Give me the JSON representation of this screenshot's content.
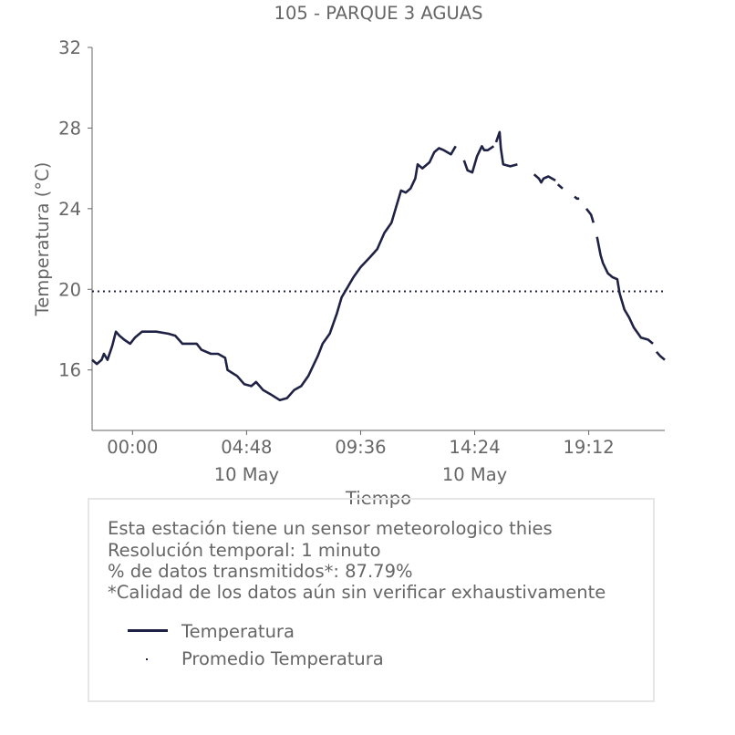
{
  "chart_data": {
    "type": "line",
    "title": "105 - PARQUE 3 AGUAS",
    "xlabel": "Tiempo",
    "ylabel": "Temperatura (°C)",
    "ylim": [
      13,
      32
    ],
    "y_ticks": [
      16,
      20,
      24,
      28,
      32
    ],
    "x_range_hours": [
      -1.7,
      22.4
    ],
    "x_ticks": [
      {
        "hour": 0.0,
        "label": "00:00",
        "sublabel": ""
      },
      {
        "hour": 4.8,
        "label": "04:48",
        "sublabel": "10 May"
      },
      {
        "hour": 9.6,
        "label": "09:36",
        "sublabel": ""
      },
      {
        "hour": 14.4,
        "label": "14:24",
        "sublabel": "10 May"
      },
      {
        "hour": 19.2,
        "label": "19:12",
        "sublabel": ""
      }
    ],
    "grid": false,
    "series": [
      {
        "name": "Temperatura",
        "color": "#1f2244",
        "segments": [
          [
            [
              -1.7,
              16.5
            ],
            [
              -1.5,
              16.3
            ],
            [
              -1.3,
              16.5
            ],
            [
              -1.2,
              16.8
            ],
            [
              -1.05,
              16.5
            ],
            [
              -0.85,
              17.2
            ],
            [
              -0.7,
              17.9
            ],
            [
              -0.55,
              17.7
            ],
            [
              -0.35,
              17.5
            ],
            [
              -0.1,
              17.3
            ],
            [
              0.1,
              17.6
            ],
            [
              0.4,
              17.9
            ],
            [
              1.0,
              17.9
            ],
            [
              1.5,
              17.8
            ],
            [
              1.8,
              17.7
            ],
            [
              2.1,
              17.3
            ],
            [
              2.3,
              17.3
            ],
            [
              2.7,
              17.3
            ],
            [
              2.9,
              17.0
            ],
            [
              3.3,
              16.8
            ],
            [
              3.6,
              16.8
            ],
            [
              3.9,
              16.6
            ],
            [
              4.0,
              16.0
            ],
            [
              4.4,
              15.7
            ],
            [
              4.7,
              15.3
            ],
            [
              5.0,
              15.2
            ],
            [
              5.2,
              15.4
            ],
            [
              5.5,
              15.0
            ],
            [
              5.8,
              14.8
            ],
            [
              6.2,
              14.5
            ],
            [
              6.5,
              14.6
            ],
            [
              6.8,
              15.0
            ],
            [
              7.1,
              15.2
            ],
            [
              7.4,
              15.7
            ],
            [
              7.6,
              16.2
            ],
            [
              7.8,
              16.7
            ],
            [
              8.0,
              17.3
            ],
            [
              8.3,
              17.8
            ],
            [
              8.6,
              18.8
            ],
            [
              8.8,
              19.6
            ],
            [
              9.0,
              20.0
            ],
            [
              9.3,
              20.6
            ],
            [
              9.6,
              21.1
            ],
            [
              10.0,
              21.6
            ],
            [
              10.3,
              22.0
            ],
            [
              10.6,
              22.8
            ],
            [
              10.9,
              23.3
            ],
            [
              11.1,
              24.1
            ],
            [
              11.3,
              24.9
            ],
            [
              11.5,
              24.8
            ],
            [
              11.7,
              25.0
            ],
            [
              11.9,
              25.5
            ],
            [
              12.0,
              26.2
            ],
            [
              12.2,
              26.0
            ],
            [
              12.5,
              26.3
            ],
            [
              12.7,
              26.8
            ],
            [
              12.9,
              27.0
            ],
            [
              13.1,
              26.9
            ],
            [
              13.4,
              26.7
            ],
            [
              13.6,
              27.1
            ]
          ],
          [
            [
              13.95,
              26.4
            ],
            [
              14.1,
              25.9
            ],
            [
              14.3,
              25.8
            ],
            [
              14.5,
              26.6
            ],
            [
              14.7,
              27.1
            ],
            [
              14.8,
              26.9
            ],
            [
              14.95,
              26.9
            ],
            [
              15.2,
              27.1
            ]
          ],
          [
            [
              15.3,
              27.3
            ],
            [
              15.45,
              27.8
            ],
            [
              15.5,
              27.0
            ],
            [
              15.6,
              26.2
            ],
            [
              15.9,
              26.1
            ],
            [
              16.2,
              26.2
            ]
          ],
          [
            [
              16.9,
              25.7
            ],
            [
              17.1,
              25.5
            ],
            [
              17.2,
              25.3
            ],
            [
              17.3,
              25.5
            ],
            [
              17.5,
              25.6
            ],
            [
              17.8,
              25.4
            ]
          ],
          [
            [
              17.9,
              25.2
            ],
            [
              18.1,
              25.0
            ]
          ],
          [
            [
              18.6,
              24.6
            ],
            [
              18.7,
              24.5
            ],
            [
              18.8,
              24.5
            ]
          ],
          [
            [
              19.1,
              24.0
            ],
            [
              19.3,
              23.7
            ],
            [
              19.4,
              23.3
            ]
          ],
          [
            [
              19.55,
              22.6
            ],
            [
              19.7,
              21.7
            ],
            [
              19.8,
              21.3
            ],
            [
              20.0,
              20.8
            ],
            [
              20.2,
              20.6
            ],
            [
              20.4,
              20.5
            ],
            [
              20.5,
              19.8
            ],
            [
              20.7,
              19.0
            ],
            [
              20.9,
              18.6
            ],
            [
              21.1,
              18.1
            ],
            [
              21.4,
              17.6
            ],
            [
              21.7,
              17.5
            ],
            [
              21.9,
              17.3
            ]
          ],
          [
            [
              22.05,
              16.9
            ],
            [
              22.2,
              16.7
            ],
            [
              22.4,
              16.5
            ]
          ]
        ]
      },
      {
        "name": "Promedio Temperatura",
        "color": "#1f2244",
        "style": "dotted",
        "values": [
          19.9,
          19.9
        ]
      }
    ]
  },
  "info": {
    "line1": "Esta estación tiene un sensor meteorologico thies",
    "line2": "Resolución temporal: 1 minuto",
    "line3": "% de datos transmitidos*: 87.79%",
    "line4": "*Calidad de los datos aún sin verificar exhaustivamente"
  },
  "legend": [
    {
      "label": "Temperatura"
    },
    {
      "label": "Promedio Temperatura"
    }
  ]
}
